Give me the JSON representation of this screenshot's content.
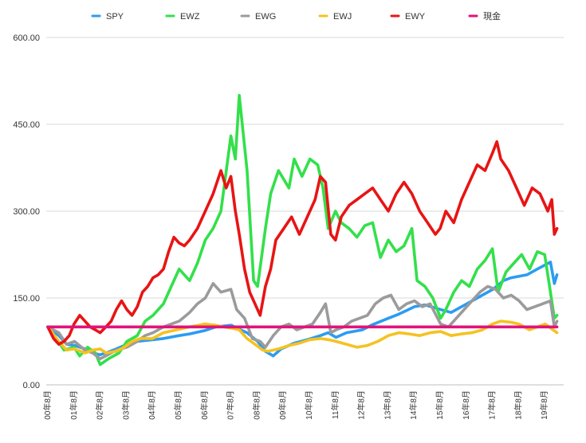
{
  "chart_data": {
    "type": "line",
    "ylim": [
      0,
      600
    ],
    "yticks": [
      "0.00",
      "150.00",
      "300.00",
      "450.00",
      "600.00"
    ],
    "x_labels": [
      "00年8月",
      "01年8月",
      "02年8月",
      "03年8月",
      "04年8月",
      "05年8月",
      "06年8月",
      "07年8月",
      "08年8月",
      "09年8月",
      "10年8月",
      "11年8月",
      "12年8月",
      "13年8月",
      "14年8月",
      "15年8月",
      "16年8月",
      "17年8月",
      "18年8月",
      "19年8月"
    ],
    "x_start": 2000.58,
    "x_end": 2020.1,
    "grid": true,
    "legend_position": "top",
    "series": [
      {
        "name": "SPY",
        "color": "#2b9cf2",
        "x": [
          2000.58,
          2001.0,
          2001.3,
          2001.6,
          2002.0,
          2002.3,
          2002.58,
          2002.8,
          2003.2,
          2003.6,
          2004.0,
          2004.6,
          2005.0,
          2005.6,
          2006.0,
          2006.6,
          2007.0,
          2007.6,
          2007.8,
          2008.2,
          2008.6,
          2008.9,
          2009.2,
          2009.5,
          2010.0,
          2010.5,
          2011.0,
          2011.3,
          2011.6,
          2012.0,
          2012.6,
          2013.0,
          2013.6,
          2014.0,
          2014.6,
          2015.0,
          2015.6,
          2016.0,
          2016.6,
          2017.0,
          2017.6,
          2018.0,
          2018.3,
          2018.9,
          2019.3,
          2019.8,
          2019.95,
          2020.05
        ],
        "values": [
          100,
          85,
          70,
          68,
          62,
          55,
          52,
          55,
          62,
          70,
          75,
          78,
          80,
          85,
          88,
          94,
          100,
          103,
          98,
          90,
          75,
          58,
          50,
          62,
          72,
          78,
          85,
          90,
          82,
          90,
          95,
          104,
          115,
          122,
          135,
          138,
          130,
          125,
          140,
          150,
          165,
          180,
          185,
          190,
          200,
          212,
          175,
          190
        ]
      },
      {
        "name": "EWZ",
        "color": "#33e04a",
        "x": [
          2000.58,
          2000.9,
          2001.2,
          2001.58,
          2001.8,
          2002.1,
          2002.4,
          2002.58,
          2002.9,
          2003.3,
          2003.6,
          2004.0,
          2004.3,
          2004.6,
          2005.0,
          2005.3,
          2005.6,
          2006.0,
          2006.3,
          2006.6,
          2006.9,
          2007.2,
          2007.58,
          2007.75,
          2007.9,
          2008.2,
          2008.45,
          2008.6,
          2008.75,
          2008.9,
          2009.1,
          2009.4,
          2009.8,
          2010.0,
          2010.3,
          2010.6,
          2010.9,
          2011.1,
          2011.3,
          2011.58,
          2011.8,
          2012.1,
          2012.4,
          2012.7,
          2013.0,
          2013.3,
          2013.6,
          2013.9,
          2014.2,
          2014.5,
          2014.7,
          2015.0,
          2015.3,
          2015.6,
          2015.8,
          2016.1,
          2016.4,
          2016.7,
          2017.0,
          2017.3,
          2017.58,
          2017.8,
          2018.1,
          2018.3,
          2018.7,
          2019.0,
          2019.3,
          2019.58,
          2019.8,
          2019.95,
          2020.05
        ],
        "values": [
          100,
          80,
          60,
          65,
          50,
          65,
          55,
          35,
          45,
          55,
          75,
          85,
          110,
          120,
          140,
          170,
          200,
          180,
          210,
          250,
          270,
          300,
          430,
          390,
          500,
          370,
          180,
          170,
          220,
          270,
          330,
          370,
          340,
          390,
          360,
          390,
          380,
          340,
          270,
          300,
          280,
          270,
          255,
          275,
          280,
          220,
          250,
          230,
          240,
          270,
          180,
          170,
          150,
          115,
          130,
          160,
          180,
          170,
          200,
          215,
          235,
          160,
          195,
          205,
          225,
          200,
          230,
          225,
          160,
          115,
          120
        ]
      },
      {
        "name": "EWG",
        "color": "#9b9b9b",
        "x": [
          2000.58,
          2001.0,
          2001.3,
          2001.6,
          2002.0,
          2002.3,
          2002.58,
          2002.8,
          2003.2,
          2003.6,
          2004.0,
          2004.3,
          2004.6,
          2005.0,
          2005.3,
          2005.6,
          2006.0,
          2006.3,
          2006.6,
          2006.9,
          2007.2,
          2007.58,
          2007.8,
          2008.1,
          2008.4,
          2008.7,
          2008.9,
          2009.2,
          2009.5,
          2009.8,
          2010.1,
          2010.4,
          2010.7,
          2011.0,
          2011.2,
          2011.4,
          2011.6,
          2011.9,
          2012.2,
          2012.5,
          2012.8,
          2013.1,
          2013.4,
          2013.7,
          2014.0,
          2014.3,
          2014.6,
          2014.9,
          2015.2,
          2015.6,
          2015.9,
          2016.2,
          2016.5,
          2016.8,
          2017.1,
          2017.4,
          2017.7,
          2018.0,
          2018.3,
          2018.6,
          2018.9,
          2019.2,
          2019.5,
          2019.8,
          2019.95,
          2020.05
        ],
        "values": [
          100,
          90,
          70,
          75,
          60,
          55,
          45,
          50,
          60,
          65,
          75,
          85,
          90,
          100,
          105,
          110,
          125,
          140,
          150,
          175,
          160,
          165,
          130,
          115,
          80,
          75,
          65,
          85,
          100,
          105,
          95,
          100,
          105,
          125,
          140,
          90,
          95,
          100,
          110,
          115,
          120,
          140,
          150,
          155,
          130,
          140,
          145,
          135,
          140,
          105,
          100,
          115,
          130,
          145,
          160,
          170,
          165,
          150,
          155,
          145,
          130,
          135,
          140,
          145,
          100,
          110
        ]
      },
      {
        "name": "EWJ",
        "color": "#f5c220",
        "x": [
          2000.58,
          2001.0,
          2001.3,
          2001.6,
          2002.0,
          2002.3,
          2002.58,
          2002.8,
          2003.2,
          2003.5,
          2003.8,
          2004.1,
          2004.58,
          2005.0,
          2005.5,
          2006.0,
          2006.58,
          2007.0,
          2007.3,
          2007.6,
          2007.9,
          2008.2,
          2008.5,
          2008.8,
          2009.0,
          2009.4,
          2009.8,
          2010.2,
          2010.6,
          2011.0,
          2011.3,
          2011.6,
          2012.0,
          2012.4,
          2012.8,
          2013.2,
          2013.6,
          2014.0,
          2014.4,
          2014.8,
          2015.2,
          2015.6,
          2016.0,
          2016.4,
          2016.8,
          2017.2,
          2017.58,
          2017.9,
          2018.3,
          2018.6,
          2019.0,
          2019.3,
          2019.6,
          2019.9,
          2020.05
        ],
        "values": [
          100,
          75,
          60,
          62,
          55,
          60,
          62,
          55,
          58,
          65,
          75,
          80,
          80,
          90,
          95,
          100,
          105,
          103,
          100,
          98,
          95,
          80,
          70,
          60,
          58,
          62,
          68,
          72,
          78,
          80,
          78,
          75,
          70,
          65,
          68,
          75,
          85,
          90,
          88,
          85,
          90,
          92,
          85,
          88,
          90,
          95,
          105,
          110,
          108,
          105,
          95,
          100,
          105,
          95,
          90
        ]
      },
      {
        "name": "EWY",
        "color": "#e81414",
        "x": [
          2000.58,
          2000.8,
          2001.0,
          2001.2,
          2001.4,
          2001.58,
          2001.8,
          2002.0,
          2002.2,
          2002.4,
          2002.58,
          2002.8,
          2003.0,
          2003.2,
          2003.4,
          2003.6,
          2003.8,
          2004.0,
          2004.2,
          2004.4,
          2004.6,
          2004.8,
          2005.0,
          2005.2,
          2005.4,
          2005.6,
          2005.8,
          2006.0,
          2006.3,
          2006.6,
          2006.9,
          2007.2,
          2007.4,
          2007.58,
          2007.75,
          2007.9,
          2008.1,
          2008.3,
          2008.5,
          2008.7,
          2008.9,
          2009.1,
          2009.3,
          2009.6,
          2009.9,
          2010.2,
          2010.5,
          2010.8,
          2011.0,
          2011.2,
          2011.4,
          2011.58,
          2011.8,
          2012.1,
          2012.4,
          2012.7,
          2013.0,
          2013.3,
          2013.6,
          2013.9,
          2014.2,
          2014.5,
          2014.8,
          2015.1,
          2015.4,
          2015.58,
          2015.8,
          2016.1,
          2016.4,
          2016.7,
          2017.0,
          2017.3,
          2017.58,
          2017.75,
          2017.9,
          2018.2,
          2018.5,
          2018.8,
          2019.1,
          2019.4,
          2019.7,
          2019.85,
          2019.95,
          2020.05
        ],
        "values": [
          100,
          80,
          70,
          75,
          85,
          105,
          120,
          110,
          100,
          95,
          90,
          100,
          110,
          130,
          145,
          130,
          120,
          135,
          160,
          170,
          185,
          190,
          200,
          230,
          255,
          245,
          240,
          250,
          270,
          300,
          330,
          370,
          340,
          360,
          300,
          260,
          200,
          160,
          140,
          120,
          170,
          200,
          250,
          270,
          290,
          260,
          290,
          320,
          360,
          350,
          260,
          250,
          290,
          310,
          320,
          330,
          340,
          320,
          300,
          330,
          350,
          330,
          300,
          280,
          260,
          270,
          300,
          280,
          320,
          350,
          380,
          370,
          400,
          420,
          390,
          370,
          340,
          310,
          340,
          330,
          300,
          320,
          260,
          270
        ]
      },
      {
        "name": "現金",
        "color": "#e0137a",
        "x": [
          2000.58,
          2020.05
        ],
        "values": [
          100,
          100
        ]
      }
    ]
  }
}
